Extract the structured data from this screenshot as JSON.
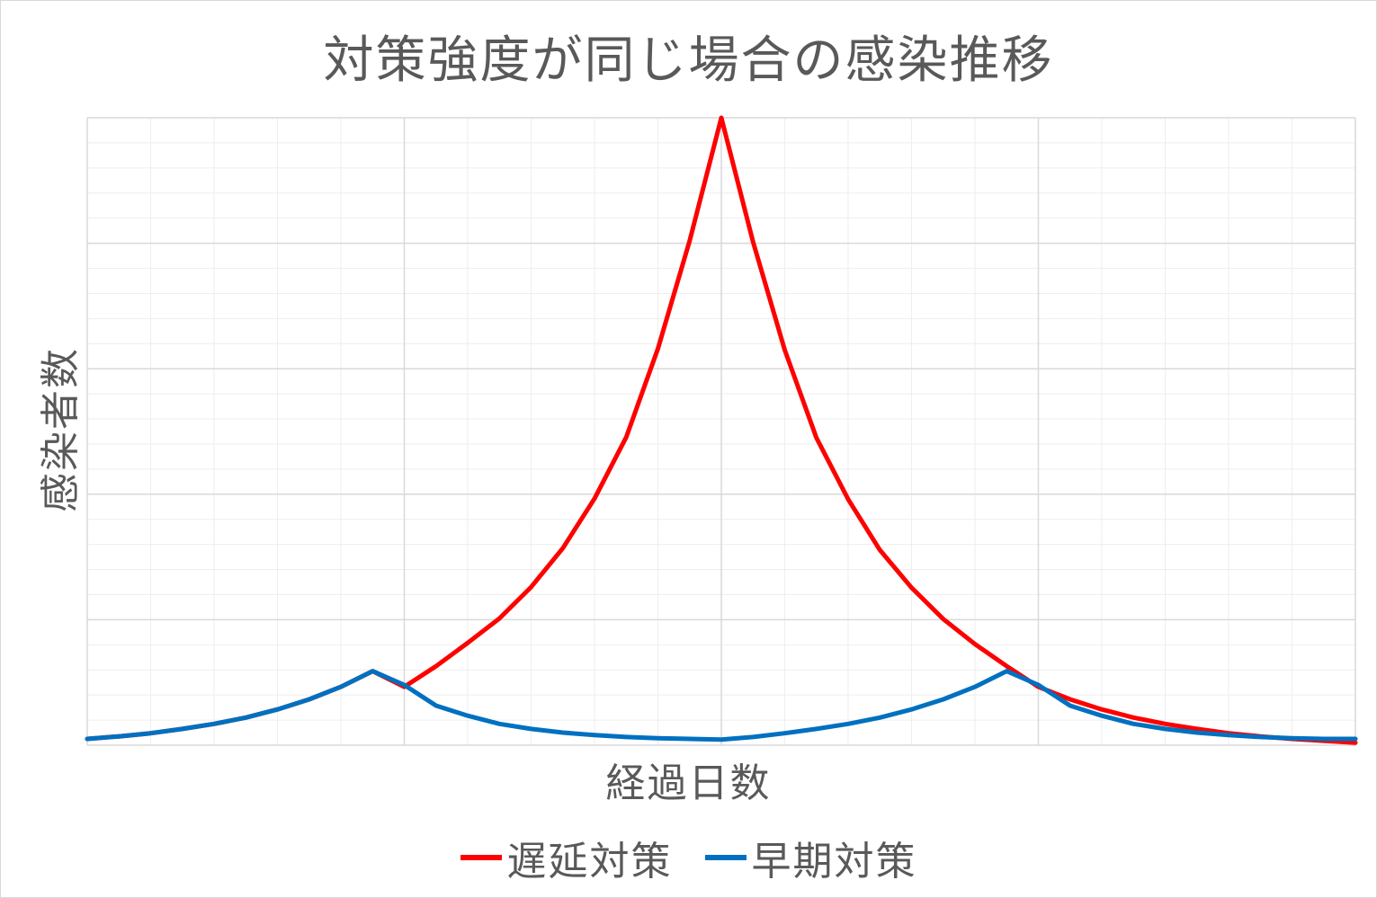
{
  "chart_data": {
    "type": "line",
    "title": "対策強度が同じ場合の感染推移",
    "xlabel": "経過日数",
    "ylabel": "感染者数",
    "x": [
      0,
      1,
      2,
      3,
      4,
      5,
      6,
      7,
      8,
      9,
      10,
      11,
      12,
      13,
      14,
      15,
      16,
      17,
      18,
      19,
      20,
      21,
      22,
      23,
      24,
      25,
      26,
      27,
      28,
      29,
      30,
      31,
      32,
      33,
      34,
      35,
      36,
      37,
      38,
      39,
      40
    ],
    "xlim": [
      0,
      40
    ],
    "ylim": [
      0,
      100
    ],
    "grid": {
      "major_x": [
        10,
        20,
        30
      ],
      "major_y": [
        20,
        40,
        60,
        80,
        100
      ],
      "minor": true
    },
    "legend_position": "bottom",
    "series": [
      {
        "name": "遅延対策",
        "color": "#ff0000",
        "values": [
          1.0,
          1.4,
          1.9,
          2.6,
          3.4,
          4.4,
          5.7,
          7.3,
          9.3,
          11.8,
          9.3,
          12.6,
          16.3,
          20.2,
          25.2,
          31.4,
          39.3,
          49.1,
          63.2,
          80.4,
          100,
          80.2,
          63.0,
          49.0,
          39.2,
          31.1,
          25.1,
          20.1,
          16.1,
          12.6,
          9.3,
          7.3,
          5.7,
          4.4,
          3.4,
          2.6,
          1.9,
          1.4,
          1.0,
          0.7,
          0.4
        ]
      },
      {
        "name": "早期対策",
        "color": "#0070c0",
        "values": [
          1.0,
          1.4,
          1.9,
          2.6,
          3.4,
          4.4,
          5.7,
          7.3,
          9.3,
          11.8,
          9.6,
          6.3,
          4.7,
          3.4,
          2.6,
          2.0,
          1.6,
          1.3,
          1.1,
          1.0,
          0.9,
          1.3,
          1.9,
          2.6,
          3.4,
          4.4,
          5.7,
          7.3,
          9.3,
          11.8,
          9.6,
          6.3,
          4.7,
          3.4,
          2.6,
          2.0,
          1.6,
          1.3,
          1.1,
          1.0,
          1.0
        ]
      }
    ]
  }
}
